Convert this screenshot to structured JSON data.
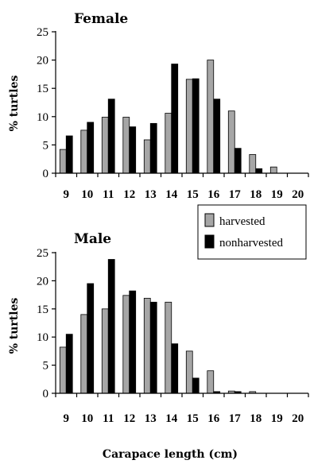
{
  "chart_data": [
    {
      "type": "bar",
      "title": "Female",
      "ylabel": "% turtles",
      "xlabel": "",
      "categories": [
        "9",
        "10",
        "11",
        "12",
        "13",
        "14",
        "15",
        "16",
        "17",
        "18",
        "19",
        "20"
      ],
      "ylim": [
        0,
        25
      ],
      "yticks": [
        0,
        5,
        10,
        15,
        20,
        25
      ],
      "series": [
        {
          "name": "harvested",
          "color": "#a6a6a6",
          "values": [
            4.2,
            7.6,
            9.9,
            9.9,
            5.9,
            10.6,
            16.6,
            20.0,
            11.0,
            3.3,
            1.1,
            0
          ]
        },
        {
          "name": "nonharvested",
          "color": "#000000",
          "values": [
            6.6,
            9.0,
            13.1,
            8.2,
            8.8,
            19.3,
            16.7,
            13.1,
            4.4,
            0.8,
            0,
            0
          ]
        }
      ]
    },
    {
      "type": "bar",
      "title": "Male",
      "ylabel": "% turtles",
      "xlabel": "Carapace length (cm)",
      "categories": [
        "9",
        "10",
        "11",
        "12",
        "13",
        "14",
        "15",
        "16",
        "17",
        "18",
        "19",
        "20"
      ],
      "ylim": [
        0,
        25
      ],
      "yticks": [
        0,
        5,
        10,
        15,
        20,
        25
      ],
      "legend": {
        "position": "top-right",
        "entries": [
          "harvested",
          "nonharvested"
        ]
      },
      "series": [
        {
          "name": "harvested",
          "color": "#a6a6a6",
          "values": [
            8.2,
            14.0,
            15.0,
            17.4,
            16.9,
            16.2,
            7.5,
            4.0,
            0.4,
            0.3,
            0,
            0
          ]
        },
        {
          "name": "nonharvested",
          "color": "#000000",
          "values": [
            10.5,
            19.5,
            23.8,
            18.2,
            16.2,
            8.8,
            2.7,
            0.3,
            0.3,
            0,
            0,
            0
          ]
        }
      ]
    }
  ]
}
